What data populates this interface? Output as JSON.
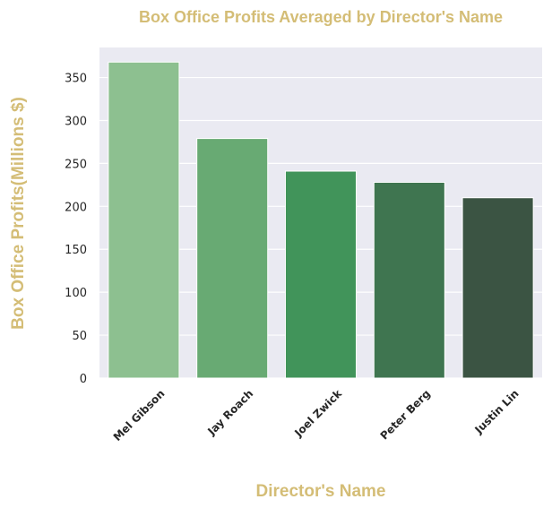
{
  "chart_data": {
    "type": "bar",
    "title": "Box Office Profits Averaged by Director's Name",
    "xlabel": "Director's Name",
    "ylabel": "Box Office Profits(Millions $)",
    "categories": [
      "Mel Gibson",
      "Jay Roach",
      "Joel Zwick",
      "Peter Berg",
      "Justin Lin"
    ],
    "values": [
      368,
      279,
      241,
      228,
      210
    ],
    "ylim": [
      0,
      385
    ],
    "yticks": [
      0,
      50,
      100,
      150,
      200,
      250,
      300,
      350
    ],
    "colors": [
      "#8dc090",
      "#68aa73",
      "#41945a",
      "#3f7550",
      "#3b5443"
    ],
    "title_color": "#d4bd76",
    "label_color": "#d4bd76",
    "plot_background": "#eaeaf2",
    "grid": true
  }
}
